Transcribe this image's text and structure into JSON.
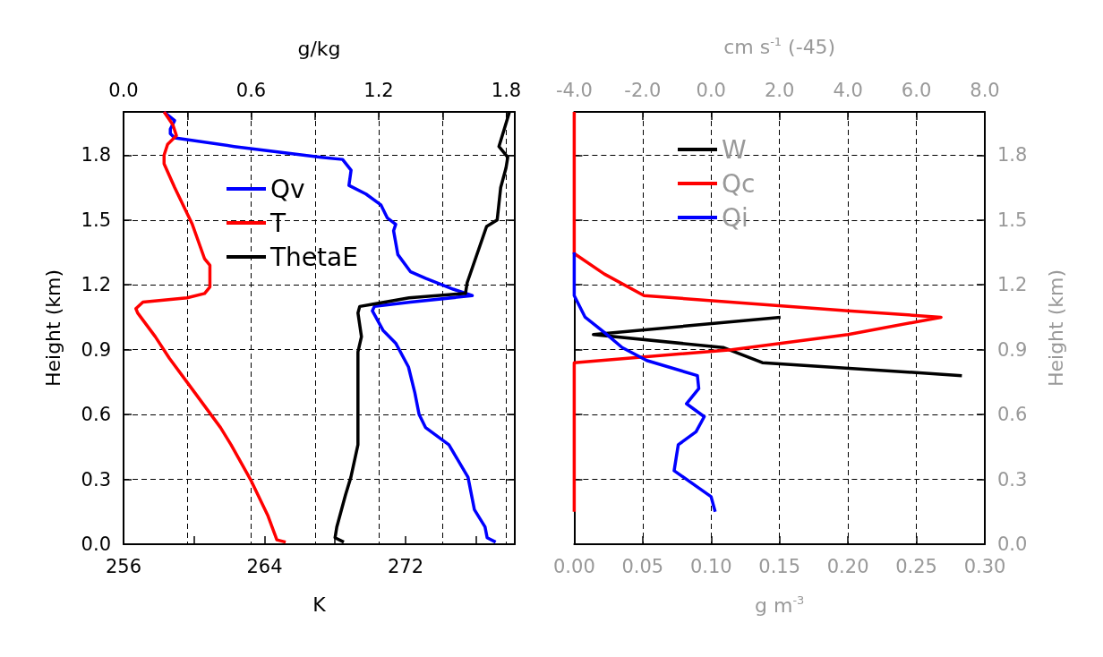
{
  "chart_data": [
    {
      "type": "line",
      "xlabel": "K",
      "x2label": "g/kg",
      "ylabel": "Height (km)",
      "xlim": [
        256,
        278.2
      ],
      "xticks": [
        256,
        {
          "value": 260,
          "label": null
        },
        264,
        {
          "value": 268,
          "label": null
        },
        272,
        {
          "value": 276,
          "label": null
        }
      ],
      "x2lim": [
        0,
        1.84
      ],
      "x2ticks": [
        {
          "value": 0,
          "label": "0.0"
        },
        {
          "value": 0.3,
          "label": null
        },
        {
          "value": 0.6,
          "label": "0.6"
        },
        {
          "value": 0.9,
          "label": null
        },
        {
          "value": 1.2,
          "label": "1.2"
        },
        {
          "value": 1.5,
          "label": null
        },
        {
          "value": 1.8,
          "label": "1.8"
        }
      ],
      "ylim": [
        0,
        2.0
      ],
      "yticks": [
        {
          "value": 0,
          "label": "0.0"
        },
        {
          "value": 0.3,
          "label": "0.3"
        },
        {
          "value": 0.6,
          "label": "0.6"
        },
        {
          "value": 0.9,
          "label": "0.9"
        },
        {
          "value": 1.2,
          "label": "1.2"
        },
        {
          "value": 1.5,
          "label": "1.5"
        },
        {
          "value": 1.8,
          "label": "1.8"
        }
      ],
      "grid": true,
      "legend": "top left",
      "marker": "none",
      "line_style": "solid",
      "series": [
        {
          "name": "Qv",
          "color": "#0000ff",
          "axis": "x2",
          "x": [
            1.75,
            1.71,
            1.7,
            1.65,
            1.62,
            1.53,
            1.42,
            1.39,
            1.37,
            1.34,
            1.28,
            1.22,
            1.17,
            1.18,
            1.35,
            1.64,
            1.55,
            1.42,
            1.35,
            1.29,
            1.27,
            1.28,
            1.24,
            1.21,
            1.14,
            1.06,
            1.07,
            1.03,
            0.93,
            0.52,
            0.24,
            0.22,
            0.22,
            0.24,
            0.19
          ],
          "values": [
            0.01,
            0.03,
            0.08,
            0.16,
            0.31,
            0.46,
            0.54,
            0.6,
            0.7,
            0.82,
            0.93,
            0.99,
            1.08,
            1.1,
            1.12,
            1.15,
            1.18,
            1.23,
            1.26,
            1.34,
            1.45,
            1.48,
            1.51,
            1.57,
            1.62,
            1.66,
            1.73,
            1.78,
            1.79,
            1.84,
            1.88,
            1.9,
            1.92,
            1.96,
            2.0
          ]
        },
        {
          "name": "T",
          "color": "#ff0000",
          "x": [
            265.2,
            264.7,
            264.2,
            263.2,
            262.1,
            261.5,
            259.6,
            258.6,
            257.8,
            256.8,
            256.7,
            257.1,
            259.6,
            260.6,
            260.9,
            260.9,
            260.6,
            259.9,
            258.9,
            258.3,
            258.3,
            258.5,
            259.0,
            258.8,
            258.3
          ],
          "values": [
            0.01,
            0.02,
            0.13,
            0.3,
            0.46,
            0.54,
            0.75,
            0.86,
            0.96,
            1.07,
            1.09,
            1.12,
            1.14,
            1.16,
            1.19,
            1.29,
            1.32,
            1.48,
            1.65,
            1.76,
            1.8,
            1.85,
            1.89,
            1.94,
            2.0
          ]
        },
        {
          "name": "ThetaE",
          "color": "#000000",
          "x": [
            268.5,
            268.0,
            268.1,
            268.6,
            268.9,
            269.3,
            269.3,
            269.3,
            269.5,
            269.3,
            269.4,
            270.1,
            272.2,
            275.4,
            275.5,
            276.6,
            277.2,
            277.4,
            277.7,
            277.8,
            277.3,
            277.9
          ],
          "values": [
            0.01,
            0.03,
            0.08,
            0.23,
            0.31,
            0.46,
            0.68,
            0.89,
            0.96,
            1.07,
            1.1,
            1.11,
            1.14,
            1.16,
            1.21,
            1.47,
            1.5,
            1.65,
            1.74,
            1.79,
            1.84,
            2.0
          ]
        }
      ]
    },
    {
      "type": "line",
      "xlabel": "g m$^{-3}$",
      "x2label": "cm s$^{-1}$ (-45)",
      "ylabel": "Height (km)",
      "xlim": [
        0,
        0.3
      ],
      "xticks": [
        {
          "value": 0,
          "label": "0.00"
        },
        {
          "value": 0.05,
          "label": "0.05"
        },
        {
          "value": 0.1,
          "label": "0.10"
        },
        {
          "value": 0.15,
          "label": "0.15"
        },
        {
          "value": 0.2,
          "label": "0.20"
        },
        {
          "value": 0.25,
          "label": "0.25"
        },
        {
          "value": 0.3,
          "label": "0.30"
        }
      ],
      "x2lim": [
        -4,
        8
      ],
      "x2ticks": [
        {
          "value": -4,
          "label": "-4.0"
        },
        {
          "value": -2,
          "label": "-2.0"
        },
        {
          "value": 0,
          "label": "0.0"
        },
        {
          "value": 2,
          "label": "2.0"
        },
        {
          "value": 4,
          "label": "4.0"
        },
        {
          "value": 6,
          "label": "6.0"
        },
        {
          "value": 8,
          "label": "8.0"
        }
      ],
      "ylim": [
        0,
        2.0
      ],
      "yticks": [
        {
          "value": 0,
          "label": "0.0"
        },
        {
          "value": 0.3,
          "label": "0.3"
        },
        {
          "value": 0.6,
          "label": "0.6"
        },
        {
          "value": 0.9,
          "label": "0.9"
        },
        {
          "value": 1.2,
          "label": "1.2"
        },
        {
          "value": 1.5,
          "label": "1.5"
        },
        {
          "value": 1.8,
          "label": "1.8"
        }
      ],
      "grid": true,
      "legend": "top left",
      "marker": "none",
      "line_style": "solid",
      "series": [
        {
          "name": "W",
          "color": "#000000",
          "axis": "x2",
          "x": [
            7.33,
            1.5,
            0.35,
            -3.44,
            2.03
          ],
          "values": [
            0.78,
            0.84,
            0.91,
            0.97,
            1.05
          ]
        },
        {
          "name": "Qc",
          "color": "#ff0000",
          "x": [
            0,
            0,
            0.115,
            0.2,
            0.268,
            0.2,
            0.051,
            0.022,
            0,
            0
          ],
          "values": [
            0.15,
            0.84,
            0.9,
            0.97,
            1.05,
            1.08,
            1.15,
            1.25,
            1.345,
            2.0
          ]
        },
        {
          "name": "Qi",
          "color": "#0000ff",
          "x": [
            0.103,
            0.1,
            0.073,
            0.076,
            0.089,
            0.095,
            0.082,
            0.091,
            0.09,
            0.053,
            0.035,
            0.022,
            0.008,
            0,
            0
          ],
          "values": [
            0.15,
            0.22,
            0.34,
            0.46,
            0.52,
            0.59,
            0.65,
            0.72,
            0.78,
            0.85,
            0.91,
            0.98,
            1.05,
            1.15,
            1.35
          ]
        }
      ]
    }
  ]
}
